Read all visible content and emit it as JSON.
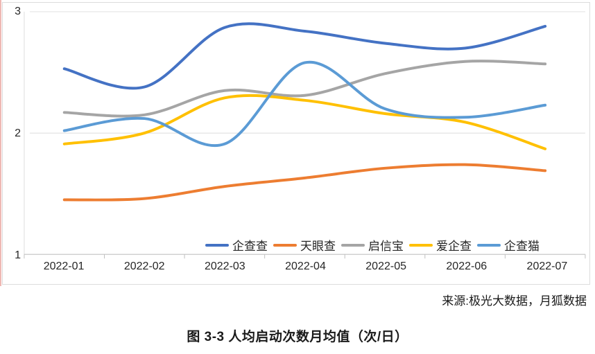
{
  "chart_data": {
    "type": "line",
    "smooth": true,
    "title": "",
    "xlabel": "",
    "ylabel": "",
    "ylim": [
      1,
      3
    ],
    "yticks": [
      "3",
      "2",
      "1"
    ],
    "grid": "horizontal",
    "legend_position": "bottom-inside",
    "categories": [
      "2022-01",
      "2022-02",
      "2022-03",
      "2022-04",
      "2022-05",
      "2022-06",
      "2022-07"
    ],
    "series": [
      {
        "name": "企查查",
        "color": "#4472C4",
        "values": [
          2.53,
          2.38,
          2.87,
          2.84,
          2.74,
          2.7,
          2.88
        ]
      },
      {
        "name": "天眼查",
        "color": "#ED7D31",
        "values": [
          1.45,
          1.46,
          1.56,
          1.63,
          1.71,
          1.74,
          1.69
        ]
      },
      {
        "name": "启信宝",
        "color": "#A5A5A5",
        "values": [
          2.17,
          2.15,
          2.35,
          2.31,
          2.49,
          2.59,
          2.57
        ]
      },
      {
        "name": "爱企查",
        "color": "#FFC000",
        "values": [
          1.91,
          2.0,
          2.29,
          2.27,
          2.16,
          2.09,
          1.87
        ]
      },
      {
        "name": "企查猫",
        "color": "#5B9BD5",
        "values": [
          2.02,
          2.12,
          1.91,
          2.58,
          2.2,
          2.13,
          2.23
        ]
      }
    ]
  },
  "source_note": "来源:极光大数据，月狐数据",
  "caption": "图 3-3 人均启动次数月均值（次/日）",
  "colors": {
    "gridline": "#dcdcdc",
    "axis": "#c0c0c0",
    "text": "#262626",
    "card_border": "#dcdcdc",
    "left_edge_mark": "#efb9b4"
  }
}
